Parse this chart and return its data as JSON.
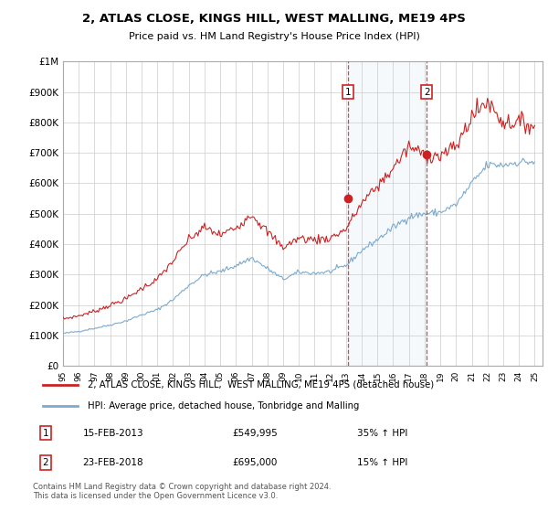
{
  "title": "2, ATLAS CLOSE, KINGS HILL, WEST MALLING, ME19 4PS",
  "subtitle": "Price paid vs. HM Land Registry's House Price Index (HPI)",
  "hpi_color": "#7aaad0",
  "price_color": "#cc2222",
  "purchase1_date": "15-FEB-2013",
  "purchase1_price": 549995,
  "purchase1_hpi_pct": "35% ↑ HPI",
  "purchase1_year": 2013.12,
  "purchase2_date": "23-FEB-2018",
  "purchase2_price": 695000,
  "purchase2_hpi_pct": "15% ↑ HPI",
  "purchase2_year": 2018.14,
  "footer": "Contains HM Land Registry data © Crown copyright and database right 2024.\nThis data is licensed under the Open Government Licence v3.0.",
  "legend1": "2, ATLAS CLOSE, KINGS HILL,  WEST MALLING, ME19 4PS (detached house)",
  "legend2": "HPI: Average price, detached house, Tonbridge and Malling",
  "xtick_labels": [
    "95",
    "96",
    "97",
    "98",
    "99",
    "00",
    "01",
    "02",
    "03",
    "04",
    "05",
    "06",
    "07",
    "08",
    "09",
    "10",
    "11",
    "12",
    "13",
    "14",
    "15",
    "16",
    "17",
    "18",
    "19",
    "20",
    "21",
    "22",
    "23",
    "24",
    "25"
  ]
}
